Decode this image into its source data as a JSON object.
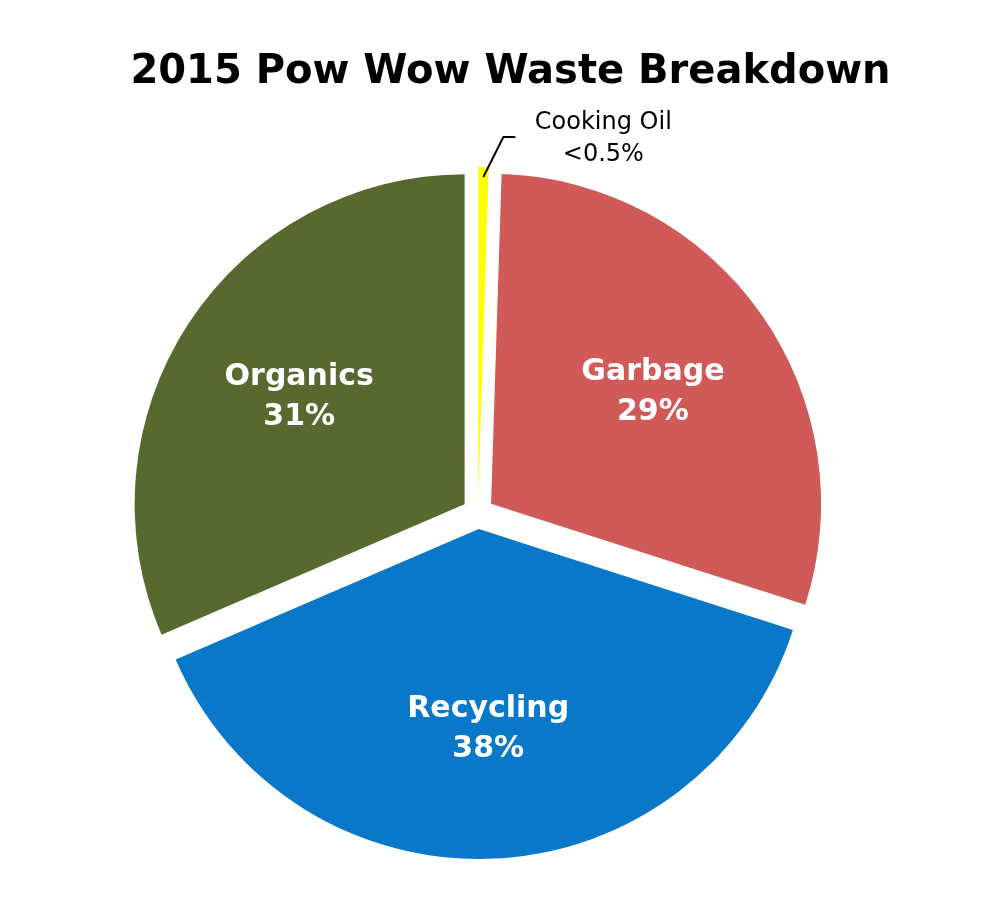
{
  "chart_data": {
    "type": "pie",
    "title": "2015 Pow Wow Waste Breakdown",
    "categories": [
      "Organics",
      "Cooking Oil",
      "Garbage",
      "Recycling"
    ],
    "values": [
      31,
      0.5,
      29,
      38
    ],
    "value_labels": [
      "31%",
      "<0.5%",
      "29%",
      "38%"
    ],
    "colors": [
      "#58692f",
      "#ffff00",
      "#d05a57",
      "#0a78c8"
    ]
  }
}
